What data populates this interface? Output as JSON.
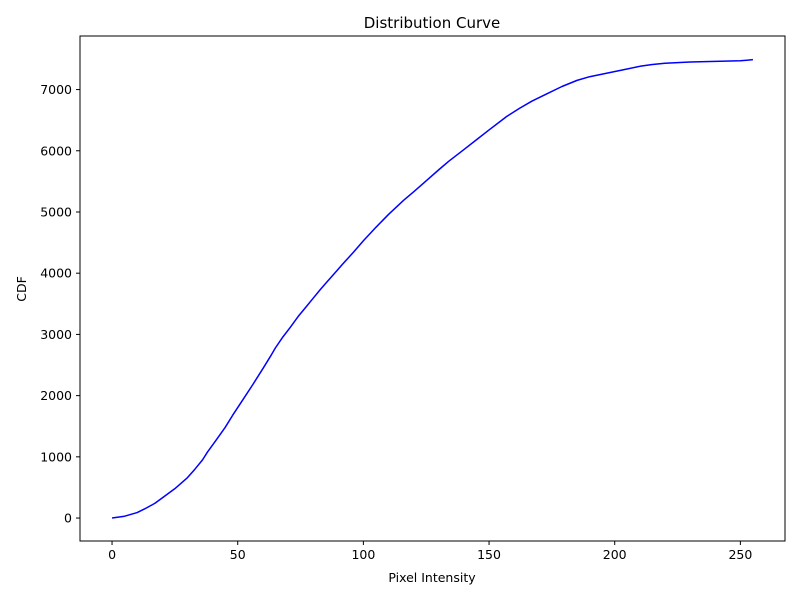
{
  "chart_data": {
    "type": "line",
    "title": "Distribution Curve",
    "xlabel": "Pixel Intensity",
    "ylabel": "CDF",
    "xlim": [
      -12.75,
      267.75
    ],
    "ylim": [
      -375,
      7875
    ],
    "x_ticks": [
      0,
      50,
      100,
      150,
      200,
      250
    ],
    "y_ticks": [
      0,
      1000,
      2000,
      3000,
      4000,
      5000,
      6000,
      7000
    ],
    "grid": false,
    "legend": "none",
    "series": [
      {
        "color": "#0000ff",
        "x": [
          0,
          5,
          10,
          13,
          17,
          20,
          25,
          30,
          33,
          36,
          38,
          41,
          45,
          48,
          52,
          56,
          60,
          63,
          65,
          68,
          71,
          74,
          77,
          80,
          83,
          86,
          89,
          92,
          96,
          100,
          105,
          110,
          116,
          120,
          125,
          130,
          134,
          140,
          145,
          150,
          157,
          162,
          167,
          173,
          179,
          185,
          190,
          196,
          203,
          210,
          215,
          220,
          230,
          240,
          250,
          253,
          255
        ],
        "y": [
          0,
          30,
          90,
          150,
          240,
          330,
          480,
          660,
          800,
          950,
          1080,
          1250,
          1480,
          1680,
          1930,
          2180,
          2440,
          2640,
          2780,
          2960,
          3120,
          3290,
          3440,
          3590,
          3740,
          3880,
          4020,
          4160,
          4340,
          4530,
          4750,
          4960,
          5190,
          5330,
          5510,
          5690,
          5830,
          6020,
          6180,
          6340,
          6560,
          6690,
          6810,
          6930,
          7050,
          7150,
          7210,
          7260,
          7320,
          7380,
          7410,
          7430,
          7450,
          7460,
          7470,
          7480,
          7490
        ]
      }
    ]
  }
}
